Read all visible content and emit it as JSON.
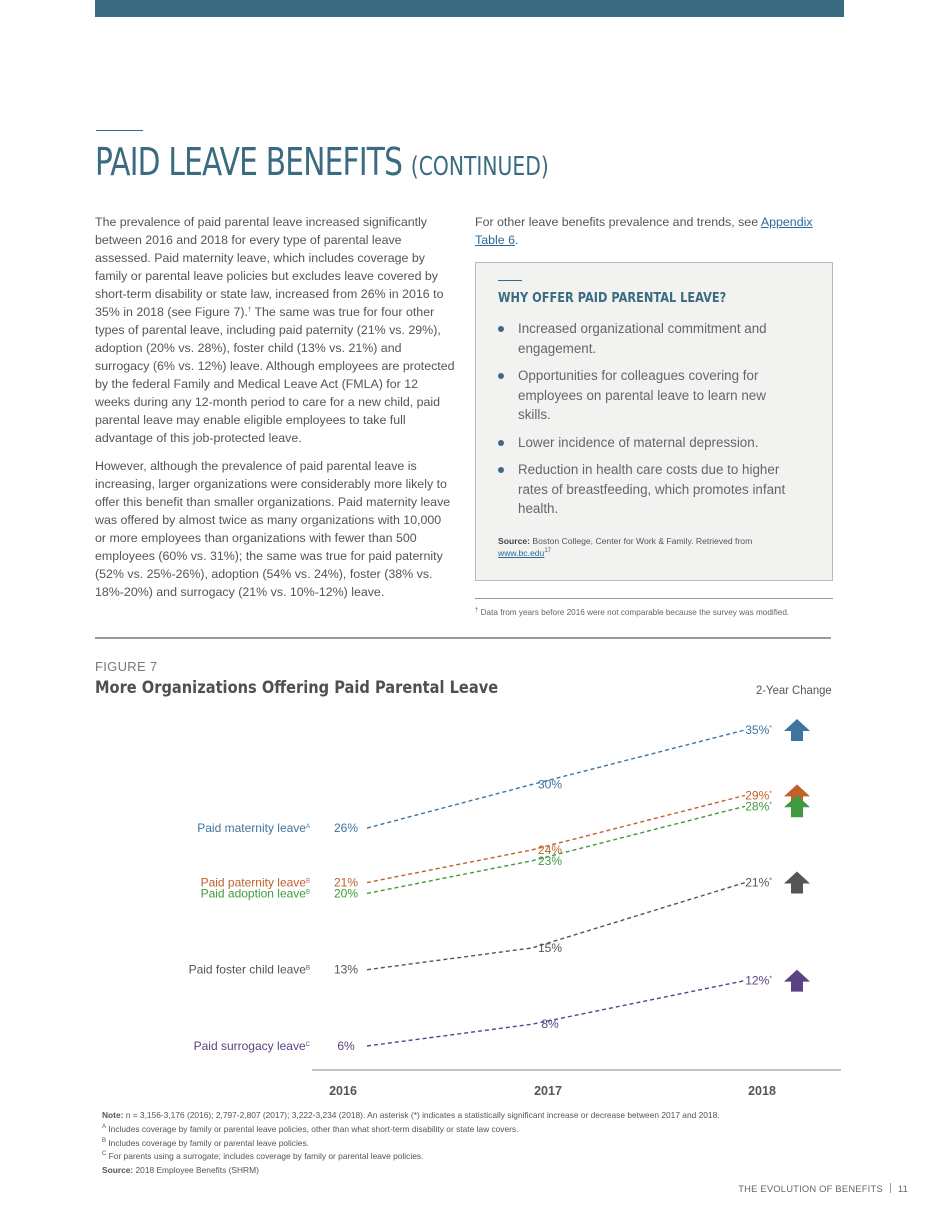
{
  "page": {
    "title": "PAID LEAVE BENEFITS",
    "title_suffix": "(CONTINUED)",
    "paragraphs": [
      "The prevalence of paid parental leave increased significantly between 2016 and 2018 for every type of parental leave assessed. Paid maternity leave, which includes coverage by family or parental leave policies but excludes leave covered by short-term disability or state law, increased from 26% in 2016 to 35% in 2018 (see Figure 7).",
      "However, although the prevalence of paid parental leave is increasing, larger organizations were considerably more likely to offer this benefit than smaller organizations. Paid maternity leave was offered by almost twice as many organizations with 10,000 or more employees than organizations with fewer than 500 employees (60% vs. 31%); the same was true for paid paternity (52% vs. 25%-26%), adoption (54% vs. 24%), foster (38% vs. 18%-20%) and surrogacy (21% vs. 10%-12%) leave."
    ],
    "p1_footnote_mark": "†",
    "p1_tail": " The same was true for four other types of parental leave, including paid paternity (21% vs. 29%), adoption (20% vs. 28%), foster child (13% vs. 21%) and surrogacy (6% vs. 12%) leave. Although employees are protected by the federal Family and Medical Leave Act (FMLA) for 12 weeks during any 12-month period to care for a new child, paid parental leave may enable eligible employees to take full advantage of this job-protected leave.",
    "right_intro": "For other leave benefits prevalence and trends, see ",
    "right_link": "Appendix Table 6",
    "right_intro_end": ".",
    "footnote_mark": "†",
    "footnote": "Data from years before 2016 were not comparable because the survey was modified.",
    "footer_left": "THE EVOLUTION OF BENEFITS",
    "footer_page": "11"
  },
  "callout": {
    "title": "WHY OFFER PAID PARENTAL LEAVE?",
    "items": [
      "Increased organizational commitment and engagement.",
      "Opportunities for colleagues covering for employees on parental leave to learn new skills.",
      "Lower incidence of maternal depression.",
      "Reduction in health care costs due to higher rates of breastfeeding, which promotes infant health."
    ],
    "source_label": "Source:",
    "source_text": "Boston College, Center for Work & Family. Retrieved from ",
    "source_link": "www.bc.edu",
    "source_ref": "17"
  },
  "figure": {
    "label": "FIGURE 7",
    "title": "More Organizations Offering Paid Parental Leave",
    "change_label": "2-Year Change",
    "notes": {
      "note_label": "Note:",
      "note_text": "n = 3,156-3,176 (2016); 2,797-2,807 (2017); 3,222-3,234 (2018). An asterisk (*) indicates a statistically significant increase or decrease between 2017 and 2018.",
      "a_mark": "A",
      "a_text": "Includes coverage by family or parental leave policies, other than what short-term disability or state law covers.",
      "b_mark": "B",
      "b_text": "Includes coverage by family or parental leave policies.",
      "c_mark": "C",
      "c_text": "For parents using a surrogate; includes coverage by family or parental leave policies.",
      "source_label": "Source:",
      "source_text": "2018 Employee Benefits (SHRM)"
    }
  },
  "chart_data": {
    "type": "line",
    "x": [
      "2016",
      "2017",
      "2018"
    ],
    "unit": "%",
    "series": [
      {
        "name": "Paid maternity leave",
        "sup": "A",
        "values": [
          26,
          30,
          35
        ],
        "significant_2018": true,
        "color": "#3e74a0"
      },
      {
        "name": "Paid paternity leave",
        "sup": "B",
        "values": [
          21,
          24,
          29
        ],
        "significant_2018": true,
        "color": "#c0612b"
      },
      {
        "name": "Paid adoption leave",
        "sup": "B",
        "values": [
          20,
          23,
          28
        ],
        "significant_2018": true,
        "color": "#3f9a3f"
      },
      {
        "name": "Paid foster child leave",
        "sup": "B",
        "values": [
          13,
          15,
          21
        ],
        "significant_2018": true,
        "color": "#555555"
      },
      {
        "name": "Paid surrogacy leave",
        "sup": "C",
        "values": [
          6,
          8,
          12
        ],
        "significant_2018": true,
        "color": "#5b4283"
      }
    ],
    "change_direction": [
      "up",
      "up",
      "up",
      "up",
      "up"
    ],
    "grid": false,
    "legend": "left"
  }
}
